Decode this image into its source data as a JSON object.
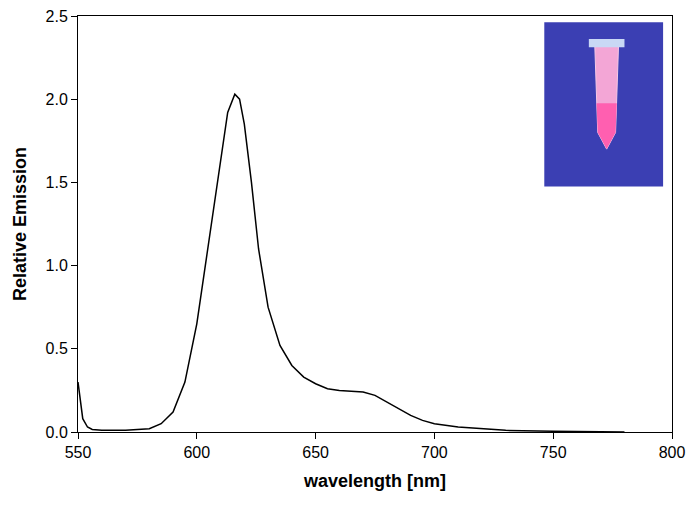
{
  "chart_data": {
    "type": "line",
    "x_label": "wavelength [nm]",
    "y_label": "Relative Emission",
    "x": [
      550,
      551,
      552,
      554,
      556,
      560,
      570,
      580,
      585,
      590,
      595,
      600,
      605,
      610,
      613,
      616,
      618,
      620,
      623,
      626,
      630,
      635,
      640,
      645,
      650,
      655,
      660,
      665,
      670,
      675,
      680,
      685,
      690,
      695,
      700,
      710,
      720,
      730,
      750,
      770,
      780
    ],
    "values": [
      0.3,
      0.18,
      0.08,
      0.03,
      0.015,
      0.01,
      0.01,
      0.02,
      0.05,
      0.12,
      0.3,
      0.65,
      1.15,
      1.65,
      1.92,
      2.03,
      2.0,
      1.85,
      1.5,
      1.1,
      0.75,
      0.52,
      0.4,
      0.33,
      0.29,
      0.26,
      0.25,
      0.245,
      0.24,
      0.22,
      0.18,
      0.14,
      0.1,
      0.07,
      0.05,
      0.03,
      0.02,
      0.01,
      0.005,
      0.0,
      0.0
    ],
    "color": "#000000",
    "xlim": [
      550,
      800
    ],
    "xticks": [
      550,
      600,
      650,
      700,
      750,
      800
    ],
    "ylim": [
      0,
      2.5
    ],
    "yticks": [
      {
        "value": 0,
        "label": "0.0"
      },
      0.5,
      {
        "value": 1,
        "label": "1.0"
      },
      1.5,
      {
        "value": 2,
        "label": "2.0"
      },
      2.5
    ],
    "grid": false
  }
}
